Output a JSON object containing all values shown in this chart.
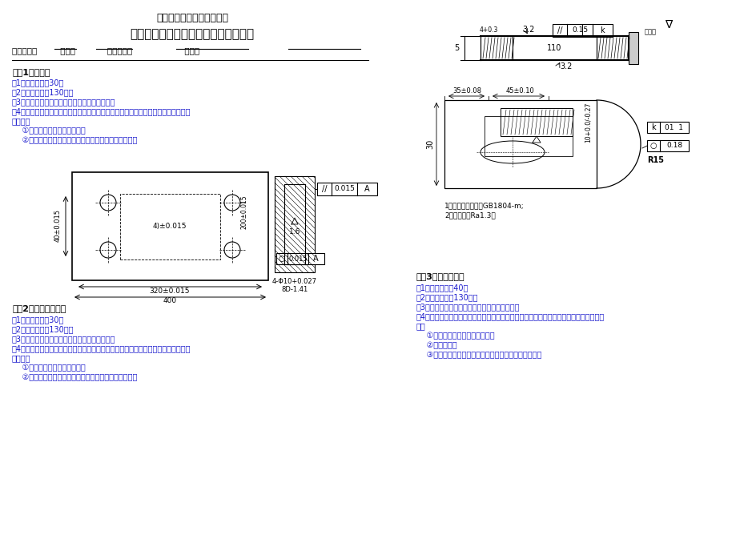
{
  "title1": "职业技能鉴定国家题库试卷",
  "title2": "加工中心操作工高级操作技能考核试卷",
  "header": "考件编号：        姓名：           准考证号：                  单位：",
  "s1_title": "试题1、四孔板",
  "s1_lines": [
    "（1）本题分值：30分",
    "（2）考核时间：130分钟",
    "（3）具体考核要求：按工件图样完成加工操作。",
    "（4）答卷须说明：如考生发生下列情况之一，则立及时中止其考试，考生该题成绩记",
    "为零分。",
    "    ①孔径和孔距累计两处超差；",
    "    ②刀具数据显示不正确，或对刀点、刀补设定不正确。"
  ],
  "s2_title": "试题2、复杂平面铣削",
  "s2_lines": [
    "（1）本题分值：30分",
    "（2）考核时间：130分钟",
    "（3）具体考核要求：按工件图样完成加工操作。",
    "（4）答卷须说明：如考生发生下列情况之一，则立及时中止其考试，考生该题成绩记",
    "为零分。",
    "    ①孔径和孔距累计两处超差；",
    "    ②刀具数据显示不正确，或对刀点、刀补设定不正确。"
  ],
  "s3_title": "试题3、螺纹板加工",
  "s3_lines": [
    "（1）本题分值：40分",
    "（2）考核时间：130分钟",
    "（3）具体考核要求：按工件图样完成加工操作。",
    "（4）答卷须说明：如考生发生下列情况之一，则立及时中止其考试，考生该题成绩记为零",
    "分。",
    "    ①螺纹出现乱扣和磁准偏斜时；",
    "    ②孔径超差；",
    "    ③刀具数据显示不正确，或对刀点、刀补设定不正确。"
  ],
  "bg_color": "#ffffff",
  "black": "#000000",
  "blue": "#1a1acd",
  "note1": "1、未注公差尺寸按GB1804-m;",
  "note2": "2、孔光洁度Ra1.3。"
}
